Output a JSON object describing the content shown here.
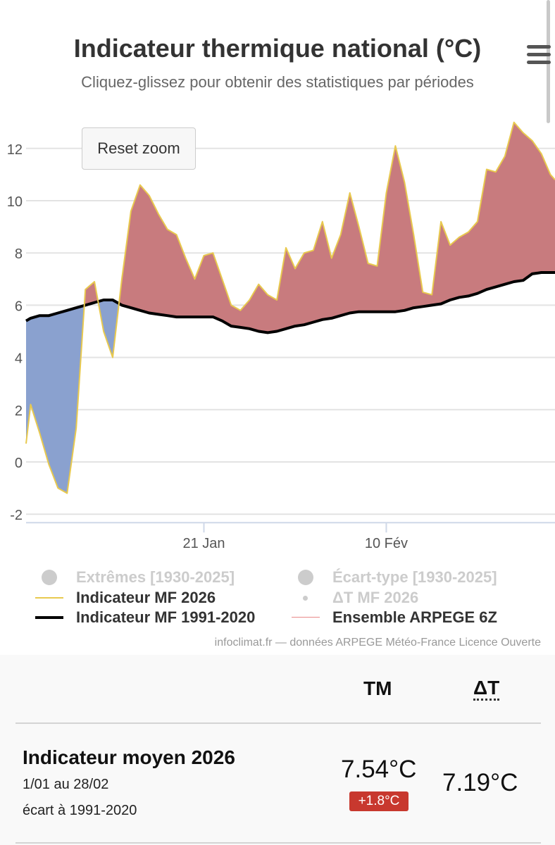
{
  "chart_data": {
    "type": "area",
    "title": "Indicateur thermique national (°C)",
    "subtitle": "Cliquez-glissez pour obtenir des statistiques par périodes",
    "ylim": [
      -2,
      13.5
    ],
    "yticks": [
      "12",
      "10",
      "8",
      "6",
      "4",
      "2",
      "0",
      "-2"
    ],
    "ytick_values": [
      12,
      10,
      8,
      6,
      4,
      2,
      0,
      -2
    ],
    "xticks": [
      "21 Jan",
      "10 Fév"
    ],
    "xtick_days": [
      20,
      40
    ],
    "x_range_days": [
      0.5,
      58.5
    ],
    "grid": true,
    "series": [
      {
        "name": "Indicateur MF 2026",
        "color": "#e8c94f",
        "x": [
          0.5,
          1,
          2,
          3,
          4,
          5,
          6,
          7,
          8,
          9,
          10,
          11,
          12,
          13,
          14,
          15,
          16,
          17,
          18,
          19,
          20,
          21,
          22,
          23,
          24,
          25,
          26,
          27,
          28,
          29,
          30,
          31,
          32,
          33,
          34,
          35,
          36,
          37,
          38,
          39,
          40,
          41,
          42,
          43,
          44,
          45,
          46,
          47,
          48,
          49,
          50,
          51,
          52,
          53,
          54,
          55,
          56,
          57,
          58,
          58.5
        ],
        "values": [
          0.7,
          2.2,
          1.1,
          -0.1,
          -1.0,
          -1.2,
          1.3,
          6.6,
          6.9,
          5.0,
          4.0,
          7.0,
          9.6,
          10.6,
          10.2,
          9.5,
          8.9,
          8.7,
          7.8,
          7.0,
          7.9,
          8.0,
          7.0,
          6.0,
          5.8,
          6.2,
          6.8,
          6.4,
          6.2,
          8.2,
          7.4,
          8.0,
          8.1,
          9.2,
          7.8,
          8.7,
          10.3,
          9.0,
          7.6,
          7.5,
          10.3,
          12.1,
          10.7,
          8.7,
          6.5,
          6.4,
          9.2,
          8.3,
          8.6,
          8.8,
          9.2,
          11.2,
          11.1,
          11.7,
          13.0,
          12.6,
          12.3,
          11.8,
          11.0,
          10.8
        ]
      },
      {
        "name": "Indicateur MF 1991-2020",
        "color": "#000000",
        "x": [
          0.5,
          1,
          2,
          3,
          4,
          5,
          6,
          7,
          8,
          9,
          10,
          11,
          12,
          13,
          14,
          15,
          16,
          17,
          18,
          19,
          20,
          21,
          22,
          23,
          24,
          25,
          26,
          27,
          28,
          29,
          30,
          31,
          32,
          33,
          34,
          35,
          36,
          37,
          38,
          39,
          40,
          41,
          42,
          43,
          44,
          45,
          46,
          47,
          48,
          49,
          50,
          51,
          52,
          53,
          54,
          55,
          56,
          57,
          58,
          58.5
        ],
        "values": [
          5.4,
          5.5,
          5.6,
          5.6,
          5.7,
          5.8,
          5.9,
          6.0,
          6.1,
          6.2,
          6.2,
          6.0,
          5.9,
          5.8,
          5.7,
          5.65,
          5.6,
          5.55,
          5.55,
          5.55,
          5.55,
          5.55,
          5.4,
          5.2,
          5.15,
          5.1,
          5.0,
          4.95,
          5.0,
          5.1,
          5.2,
          5.25,
          5.35,
          5.45,
          5.5,
          5.6,
          5.7,
          5.75,
          5.75,
          5.75,
          5.75,
          5.75,
          5.8,
          5.9,
          5.95,
          6.0,
          6.05,
          6.2,
          6.3,
          6.35,
          6.45,
          6.6,
          6.7,
          6.8,
          6.9,
          6.95,
          7.2,
          7.25,
          7.25,
          7.25
        ]
      }
    ],
    "fill_above_color": "#c87b7e",
    "fill_below_color": "#8aa1cf",
    "legend": [
      {
        "label": "Extrêmes [1930-2025]",
        "symbol": "circle",
        "visible": false
      },
      {
        "label": "Écart-type [1930-2025]",
        "symbol": "circle",
        "visible": false
      },
      {
        "label": "Indicateur MF 2026",
        "symbol": "line",
        "color": "#e8c94f",
        "visible": true
      },
      {
        "label": "ΔT MF 2026",
        "symbol": "dot",
        "visible": false
      },
      {
        "label": "Indicateur MF 1991-2020",
        "symbol": "line",
        "color": "#000000",
        "visible": true
      },
      {
        "label": "Ensemble ARPEGE 6Z",
        "symbol": "line",
        "color": "#e98a8a",
        "visible": true
      }
    ],
    "credits": "infoclimat.fr — données ARPEGE Météo-France Licence Ouverte"
  },
  "toolbar": {
    "reset_label": "Reset zoom"
  },
  "stats": {
    "col_tm": "TM",
    "col_dt": "ΔT",
    "row_title": "Indicateur moyen 2026",
    "row_period": "1/01 au 28/02",
    "row_ref": "écart à 1991-2020",
    "tm_value": "7.54°C",
    "tm_anomaly": "+1.8°C",
    "dt_value": "7.19°C"
  }
}
